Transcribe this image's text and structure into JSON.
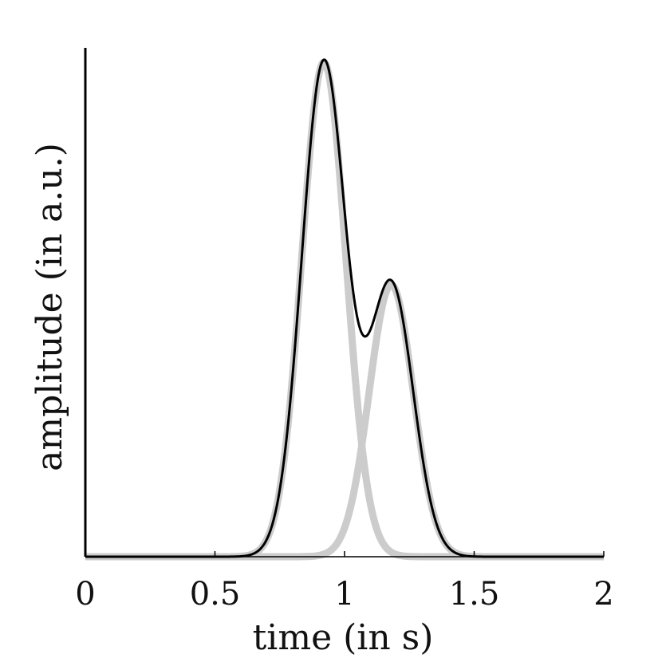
{
  "chart_data": {
    "type": "line",
    "xlabel": "time (in s)",
    "ylabel": "amplitude (in a.u.)",
    "xlim": [
      0,
      2
    ],
    "ylim": [
      0,
      1
    ],
    "x_ticks": [
      {
        "value": 0,
        "label": "0"
      },
      {
        "value": 0.5,
        "label": "0.5"
      },
      {
        "value": 1,
        "label": "1"
      },
      {
        "value": 1.5,
        "label": "1.5"
      },
      {
        "value": 2,
        "label": "2"
      }
    ],
    "y_ticks_shown": false,
    "grid": false,
    "series": [
      {
        "role": "component-1",
        "color": "#cccccc",
        "shape": "gaussian",
        "center": 0.92,
        "sigma": 0.085,
        "amplitude": 1.0
      },
      {
        "role": "component-2",
        "color": "#cccccc",
        "shape": "gaussian",
        "center": 1.18,
        "sigma": 0.085,
        "amplitude": 0.55
      },
      {
        "role": "sum",
        "color": "#000000",
        "shape": "sum of components"
      }
    ],
    "colors": {
      "components": "#cccccc",
      "sum": "#000000",
      "axes": "#000000"
    }
  }
}
